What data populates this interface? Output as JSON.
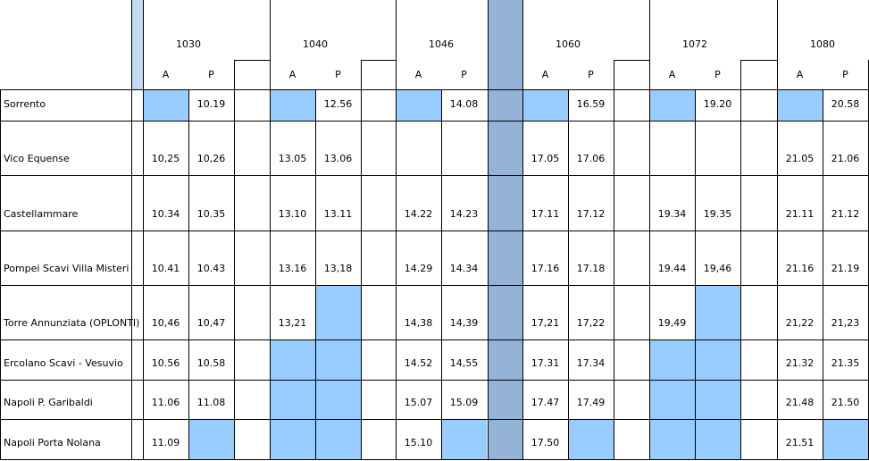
{
  "header": {
    "trains": [
      "1030",
      "1040",
      "1046",
      "1060",
      "1072",
      "1080"
    ],
    "subheads": [
      "A",
      "P",
      "A",
      "P",
      "A",
      "P",
      "A",
      "P",
      "A",
      "P",
      "A",
      "P"
    ]
  },
  "rows": [
    {
      "station": "Sorrento",
      "times": [
        null,
        "10.19",
        null,
        "12.56",
        null,
        "14.08",
        null,
        "16.59",
        null,
        "19.20",
        null,
        "20.58"
      ]
    },
    {
      "station": "Vico Equense",
      "times": [
        "10,25",
        "10,26",
        "13.05",
        "13.06",
        null,
        null,
        "17.05",
        "17.06",
        null,
        null,
        "21.05",
        "21.06"
      ]
    },
    {
      "station": "Castellammare",
      "times": [
        "10.34",
        "10.35",
        "13.10",
        "13.11",
        "14.22",
        "14.23",
        "17.11",
        "17.12",
        "19.34",
        "19.35",
        "21.11",
        "21.12"
      ]
    },
    {
      "station": "Pompei Scavi Villa Misteri",
      "times": [
        "10.41",
        "10.43",
        "13.16",
        "13,18",
        "14.29",
        "14.34",
        "17.16",
        "17.18",
        "19.44",
        "19,46",
        "21.16",
        "21.19"
      ]
    },
    {
      "station": "Torre Annunziata (OPLONTI)",
      "times": [
        "10,46",
        "10,47",
        "13,21",
        null,
        "14,38",
        "14,39",
        "17,21",
        "17,22",
        "19,49",
        null,
        "21,22",
        "21,23"
      ]
    },
    {
      "station": "Ercolano Scavi - Vesuvio",
      "times": [
        "10.56",
        "10.58",
        null,
        null,
        "14.52",
        "14,55",
        "17.31",
        "17.34",
        null,
        null,
        "21.32",
        "21.35"
      ]
    },
    {
      "station": "Napoli P. Garibaldi",
      "times": [
        "11.06",
        "11.08",
        null,
        null,
        "15.07",
        "15.09",
        "17.47",
        "17.49",
        null,
        null,
        "21.48",
        "21.50"
      ]
    },
    {
      "station": "Napoli Porta Nolana",
      "times": [
        "11.09",
        null,
        null,
        null,
        "15.10",
        null,
        "17.50",
        null,
        null,
        null,
        "21.51",
        null
      ]
    }
  ]
}
